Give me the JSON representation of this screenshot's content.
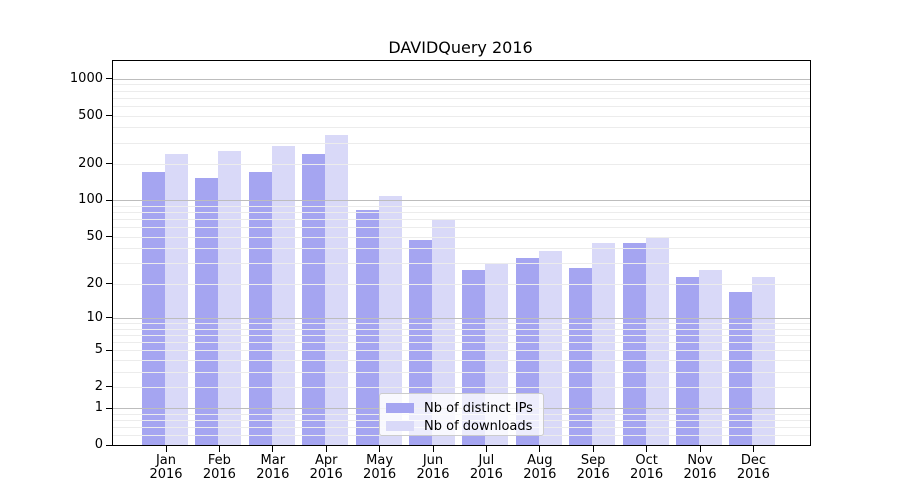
{
  "chart_data": {
    "type": "bar",
    "title": "DAVIDQuery 2016",
    "categories": [
      "Jan",
      "Feb",
      "Mar",
      "Apr",
      "May",
      "Jun",
      "Jul",
      "Aug",
      "Sep",
      "Oct",
      "Nov",
      "Dec"
    ],
    "year": "2016",
    "series": [
      {
        "name": "Nb of distinct IPs",
        "color": "#a5a5f1",
        "values": [
          172,
          152,
          172,
          240,
          83,
          47,
          26,
          33,
          27,
          44,
          23,
          17
        ]
      },
      {
        "name": "Nb of downloads",
        "color": "#d9d9f8",
        "values": [
          240,
          255,
          280,
          345,
          108,
          69,
          30,
          38,
          44,
          50,
          26,
          23
        ]
      }
    ],
    "yscale": "log1p",
    "yticks": [
      0,
      1,
      2,
      5,
      10,
      20,
      50,
      100,
      200,
      500,
      1000
    ],
    "ylim": [
      0,
      1400
    ],
    "xlabel": "",
    "ylabel": "",
    "grid": true,
    "legend_position": "lower center",
    "colors": {
      "axis": "#000000",
      "grid_major": "#bdbdbd",
      "grid_minor": "#ececec",
      "text": "#000000",
      "legend_border": "#cccccc"
    }
  }
}
